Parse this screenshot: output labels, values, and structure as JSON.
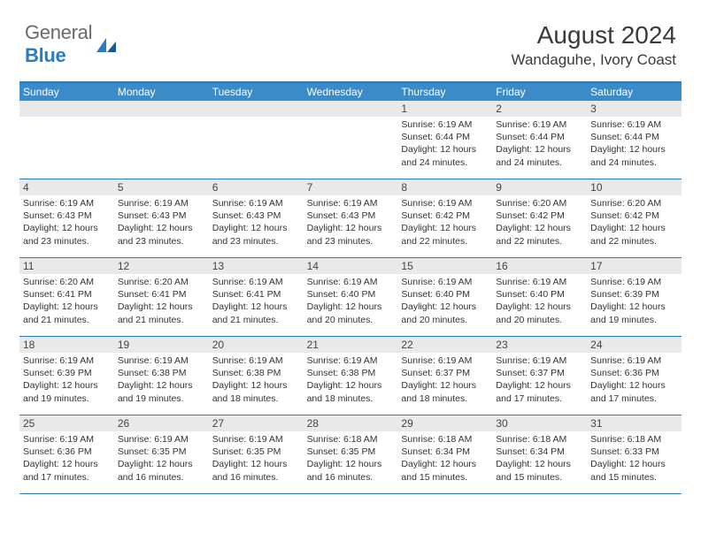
{
  "logo": {
    "text_gray": "General",
    "text_blue": "Blue"
  },
  "title": {
    "month": "August 2024",
    "location": "Wandaguhe, Ivory Coast"
  },
  "colors": {
    "header_bg": "#3b8bc9",
    "border": "#2c7bbf",
    "daynum_bg": "#e9e9e9",
    "text": "#333333"
  },
  "weekdays": [
    "Sunday",
    "Monday",
    "Tuesday",
    "Wednesday",
    "Thursday",
    "Friday",
    "Saturday"
  ],
  "weeks": [
    [
      null,
      null,
      null,
      null,
      {
        "n": "1",
        "sr": "6:19 AM",
        "ss": "6:44 PM",
        "dl": "12 hours and 24 minutes."
      },
      {
        "n": "2",
        "sr": "6:19 AM",
        "ss": "6:44 PM",
        "dl": "12 hours and 24 minutes."
      },
      {
        "n": "3",
        "sr": "6:19 AM",
        "ss": "6:44 PM",
        "dl": "12 hours and 24 minutes."
      }
    ],
    [
      {
        "n": "4",
        "sr": "6:19 AM",
        "ss": "6:43 PM",
        "dl": "12 hours and 23 minutes."
      },
      {
        "n": "5",
        "sr": "6:19 AM",
        "ss": "6:43 PM",
        "dl": "12 hours and 23 minutes."
      },
      {
        "n": "6",
        "sr": "6:19 AM",
        "ss": "6:43 PM",
        "dl": "12 hours and 23 minutes."
      },
      {
        "n": "7",
        "sr": "6:19 AM",
        "ss": "6:43 PM",
        "dl": "12 hours and 23 minutes."
      },
      {
        "n": "8",
        "sr": "6:19 AM",
        "ss": "6:42 PM",
        "dl": "12 hours and 22 minutes."
      },
      {
        "n": "9",
        "sr": "6:20 AM",
        "ss": "6:42 PM",
        "dl": "12 hours and 22 minutes."
      },
      {
        "n": "10",
        "sr": "6:20 AM",
        "ss": "6:42 PM",
        "dl": "12 hours and 22 minutes."
      }
    ],
    [
      {
        "n": "11",
        "sr": "6:20 AM",
        "ss": "6:41 PM",
        "dl": "12 hours and 21 minutes."
      },
      {
        "n": "12",
        "sr": "6:20 AM",
        "ss": "6:41 PM",
        "dl": "12 hours and 21 minutes."
      },
      {
        "n": "13",
        "sr": "6:19 AM",
        "ss": "6:41 PM",
        "dl": "12 hours and 21 minutes."
      },
      {
        "n": "14",
        "sr": "6:19 AM",
        "ss": "6:40 PM",
        "dl": "12 hours and 20 minutes."
      },
      {
        "n": "15",
        "sr": "6:19 AM",
        "ss": "6:40 PM",
        "dl": "12 hours and 20 minutes."
      },
      {
        "n": "16",
        "sr": "6:19 AM",
        "ss": "6:40 PM",
        "dl": "12 hours and 20 minutes."
      },
      {
        "n": "17",
        "sr": "6:19 AM",
        "ss": "6:39 PM",
        "dl": "12 hours and 19 minutes."
      }
    ],
    [
      {
        "n": "18",
        "sr": "6:19 AM",
        "ss": "6:39 PM",
        "dl": "12 hours and 19 minutes."
      },
      {
        "n": "19",
        "sr": "6:19 AM",
        "ss": "6:38 PM",
        "dl": "12 hours and 19 minutes."
      },
      {
        "n": "20",
        "sr": "6:19 AM",
        "ss": "6:38 PM",
        "dl": "12 hours and 18 minutes."
      },
      {
        "n": "21",
        "sr": "6:19 AM",
        "ss": "6:38 PM",
        "dl": "12 hours and 18 minutes."
      },
      {
        "n": "22",
        "sr": "6:19 AM",
        "ss": "6:37 PM",
        "dl": "12 hours and 18 minutes."
      },
      {
        "n": "23",
        "sr": "6:19 AM",
        "ss": "6:37 PM",
        "dl": "12 hours and 17 minutes."
      },
      {
        "n": "24",
        "sr": "6:19 AM",
        "ss": "6:36 PM",
        "dl": "12 hours and 17 minutes."
      }
    ],
    [
      {
        "n": "25",
        "sr": "6:19 AM",
        "ss": "6:36 PM",
        "dl": "12 hours and 17 minutes."
      },
      {
        "n": "26",
        "sr": "6:19 AM",
        "ss": "6:35 PM",
        "dl": "12 hours and 16 minutes."
      },
      {
        "n": "27",
        "sr": "6:19 AM",
        "ss": "6:35 PM",
        "dl": "12 hours and 16 minutes."
      },
      {
        "n": "28",
        "sr": "6:18 AM",
        "ss": "6:35 PM",
        "dl": "12 hours and 16 minutes."
      },
      {
        "n": "29",
        "sr": "6:18 AM",
        "ss": "6:34 PM",
        "dl": "12 hours and 15 minutes."
      },
      {
        "n": "30",
        "sr": "6:18 AM",
        "ss": "6:34 PM",
        "dl": "12 hours and 15 minutes."
      },
      {
        "n": "31",
        "sr": "6:18 AM",
        "ss": "6:33 PM",
        "dl": "12 hours and 15 minutes."
      }
    ]
  ],
  "labels": {
    "sunrise": "Sunrise: ",
    "sunset": "Sunset: ",
    "daylight": "Daylight: "
  }
}
